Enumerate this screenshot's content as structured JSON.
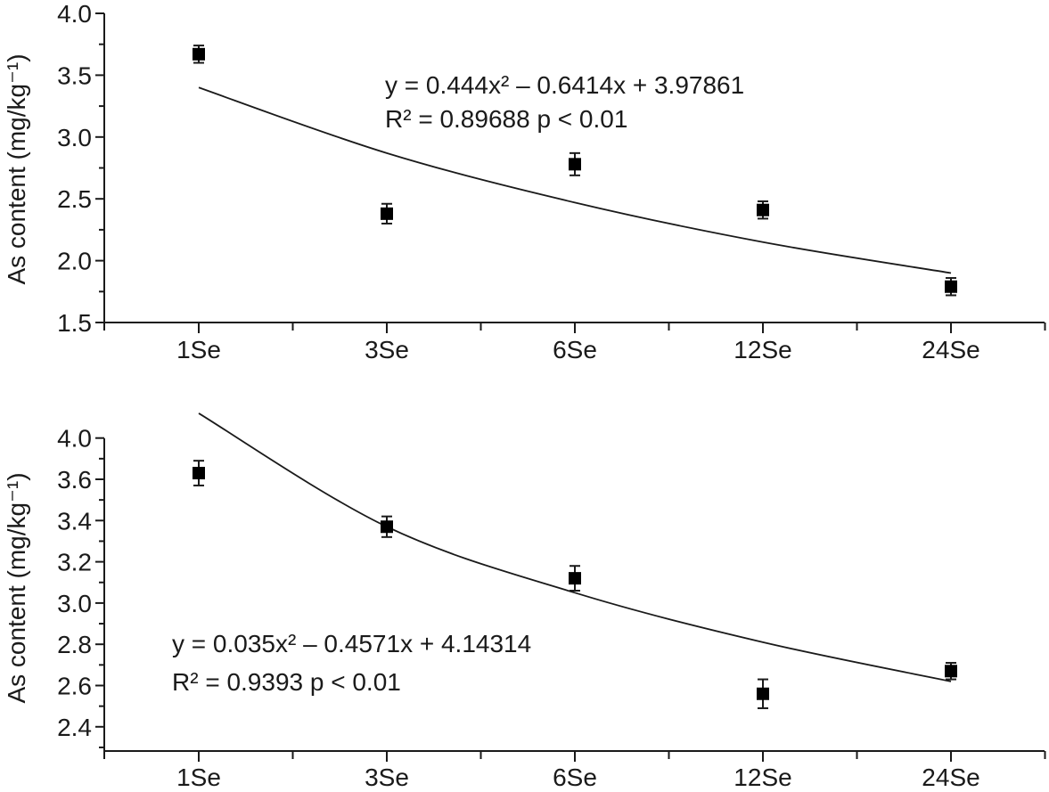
{
  "chart_data": [
    {
      "type": "scatter",
      "ylabel": "As content (mg/kg⁻¹)",
      "categories": [
        "1Se",
        "3Se",
        "6Se",
        "12Se",
        "24Se"
      ],
      "y_tick_labels": [
        "1.5",
        "2.0",
        "2.5",
        "3.0",
        "3.5",
        "4.0"
      ],
      "ylim": [
        1.5,
        4.0
      ],
      "values": [
        3.67,
        2.38,
        2.78,
        2.41,
        1.79
      ],
      "errors": [
        0.07,
        0.08,
        0.09,
        0.07,
        0.07
      ],
      "fit_values": [
        3.4,
        2.87,
        2.47,
        2.15,
        1.9
      ],
      "equation": "y = 0.444x² – 0.6414x + 3.97861",
      "stats": "R² = 0.89688   p < 0.01",
      "grid": false,
      "marker_color": "#000000"
    },
    {
      "type": "scatter",
      "ylabel": "As content (mg/kg⁻¹)",
      "categories": [
        "1Se",
        "3Se",
        "6Se",
        "12Se",
        "24Se"
      ],
      "y_tick_labels": [
        "2.4",
        "2.6",
        "2.8",
        "3.0",
        "3.2",
        "3.4",
        "3.6",
        "4.0"
      ],
      "ylim": [
        2.3,
        3.8
      ],
      "values": [
        3.63,
        3.37,
        3.12,
        2.56,
        2.67
      ],
      "errors": [
        0.06,
        0.05,
        0.06,
        0.07,
        0.04
      ],
      "fit_values": [
        3.92,
        3.37,
        3.05,
        2.81,
        2.62
      ],
      "equation": "y = 0.035x² – 0.4571x + 4.14314",
      "stats": "R² = 0.9393   p < 0.01",
      "grid": false,
      "marker_color": "#000000"
    }
  ]
}
